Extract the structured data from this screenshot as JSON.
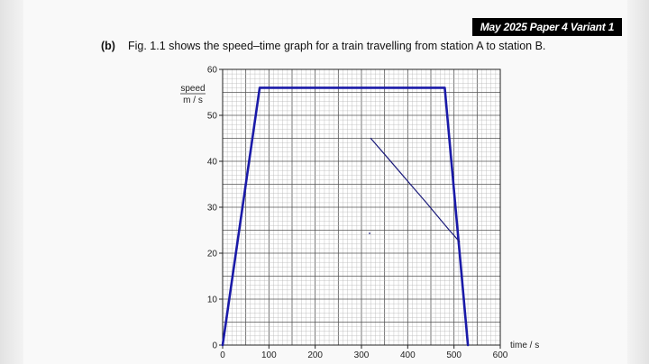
{
  "header": {
    "banner": "May 2025 Paper 4 Variant 1"
  },
  "question": {
    "label": "(b)",
    "text": "Fig. 1.1 shows the speed–time graph for a train travelling from station A to station B."
  },
  "chart_data": {
    "type": "line",
    "title": "",
    "xlabel": "time / s",
    "ylabel_top": "speed",
    "ylabel_bottom": "m / s",
    "xlim": [
      0,
      600
    ],
    "ylim": [
      0,
      60
    ],
    "x_ticks": [
      "0",
      "100",
      "200",
      "300",
      "400",
      "500",
      "600"
    ],
    "y_ticks": [
      "0",
      "10",
      "20",
      "30",
      "40",
      "50",
      "60"
    ],
    "grid": true,
    "series": [
      {
        "color": "#1a1aa8",
        "x": [
          0,
          80,
          480,
          530
        ],
        "y": [
          0,
          56,
          56,
          0
        ]
      },
      {
        "color": "#1a1a7a",
        "x": [
          320,
          350,
          380,
          410,
          440,
          465,
          490,
          505,
          512
        ],
        "y": [
          45,
          41.5,
          38,
          34.5,
          31,
          28,
          25,
          23.3,
          22.5
        ]
      }
    ]
  }
}
